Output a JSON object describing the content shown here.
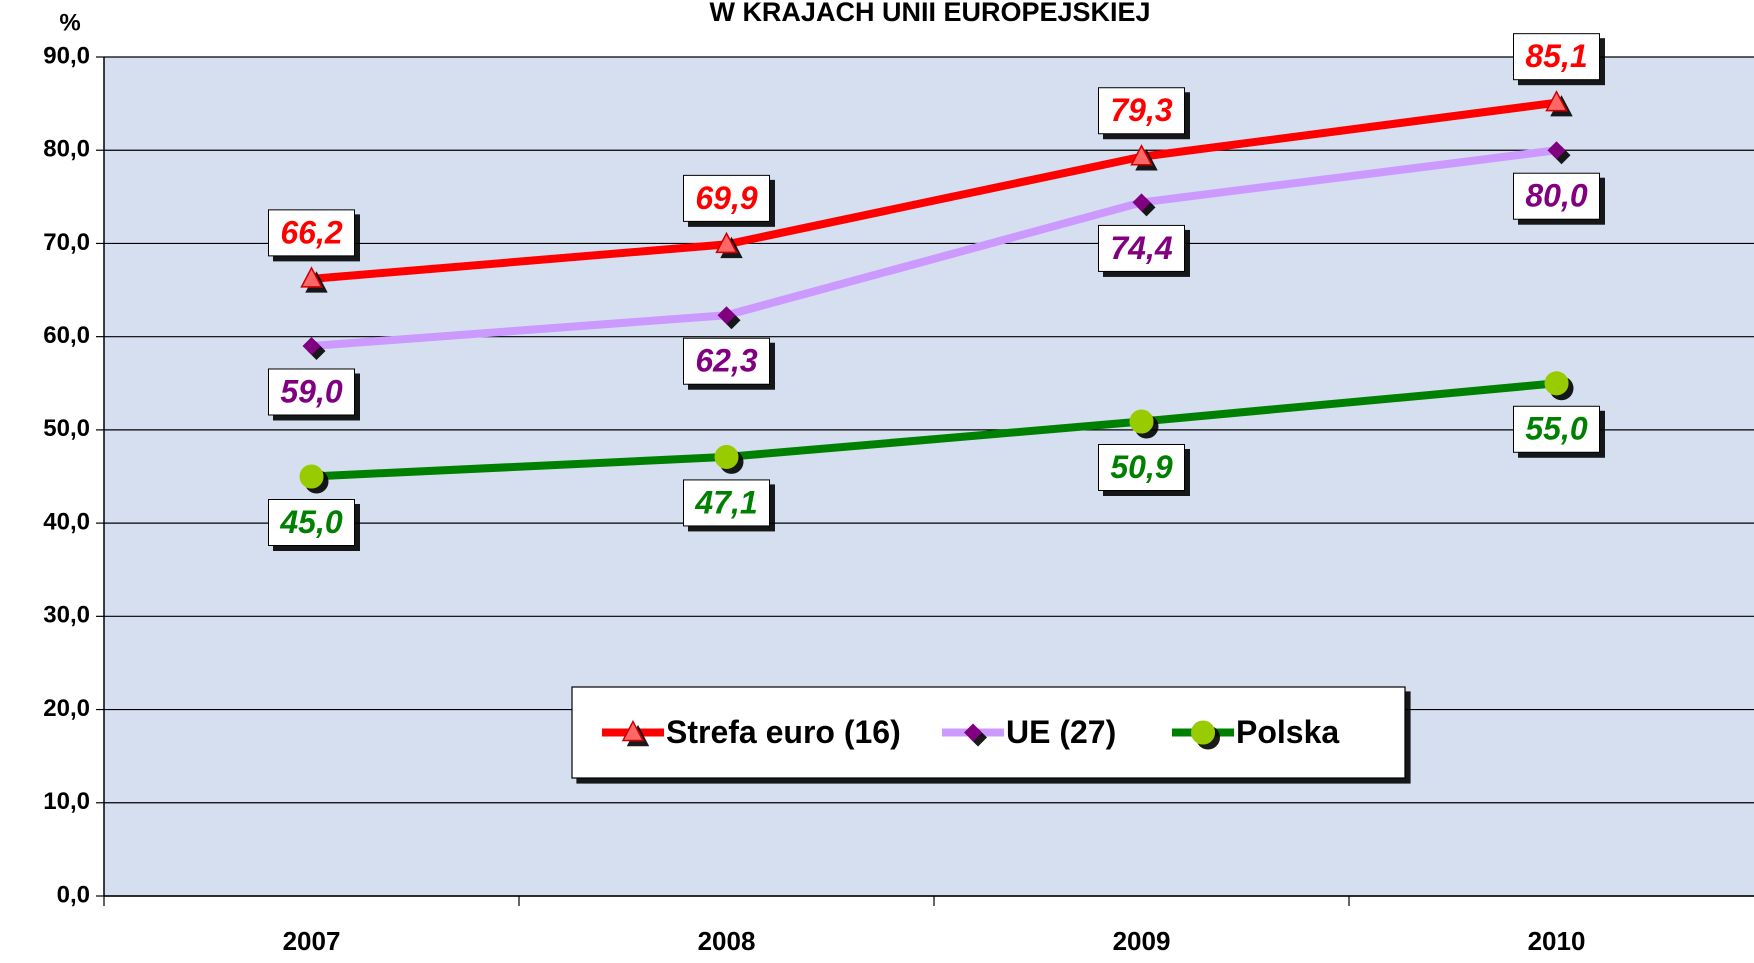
{
  "chart_data": {
    "type": "line",
    "title": "W KRAJACH UNII EUROPEJSKIEJ",
    "y_label": "%",
    "categories": [
      "2007",
      "2008",
      "2009",
      "2010"
    ],
    "series": [
      {
        "name": "Strefa euro (16)",
        "color": "#ff0000",
        "marker": "triangle",
        "marker_color": "#ff6666",
        "label_color": "#ff0000",
        "values": [
          66.2,
          69.9,
          79.3,
          85.1
        ],
        "value_labels": [
          "66,2",
          "69,9",
          "79,3",
          "85,1"
        ]
      },
      {
        "name": "UE (27)",
        "color": "#cc99ff",
        "marker": "diamond",
        "marker_color": "#800080",
        "label_color": "#800080",
        "values": [
          59.0,
          62.3,
          74.4,
          80.0
        ],
        "value_labels": [
          "59,0",
          "62,3",
          "74,4",
          "80,0"
        ]
      },
      {
        "name": "Polska",
        "color": "#008000",
        "marker": "circle",
        "marker_color": "#99cc00",
        "label_color": "#008000",
        "values": [
          45.0,
          47.1,
          50.9,
          55.0
        ],
        "value_labels": [
          "45,0",
          "47,1",
          "50,9",
          "55,0"
        ]
      }
    ],
    "ylim": [
      0,
      90
    ],
    "yticks": [
      {
        "value": 0,
        "label": "0,0"
      },
      {
        "value": 10,
        "label": "10,0"
      },
      {
        "value": 20,
        "label": "20,0"
      },
      {
        "value": 30,
        "label": "30,0"
      },
      {
        "value": 40,
        "label": "40,0"
      },
      {
        "value": 50,
        "label": "50,0"
      },
      {
        "value": 60,
        "label": "60,0"
      },
      {
        "value": 70,
        "label": "70,0"
      },
      {
        "value": 80,
        "label": "80,0"
      },
      {
        "value": 90,
        "label": "90,0"
      }
    ],
    "grid": true,
    "legend": "bottom"
  }
}
